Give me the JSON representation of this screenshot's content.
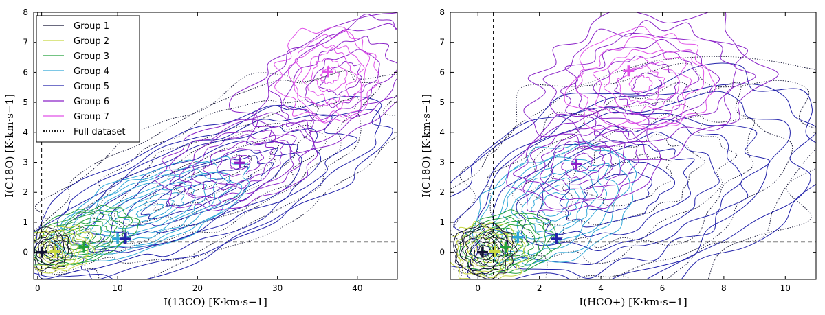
{
  "chart_data": [
    {
      "type": "contour",
      "xlabel": "I(13CO) [K·km·s−1]",
      "ylabel": "I(C18O) [K·km·s−1]",
      "xlim": [
        -0.5,
        45
      ],
      "ylim": [
        -0.9,
        8
      ],
      "xticks": [
        "0",
        "10",
        "20",
        "30",
        "40"
      ],
      "yticks": [
        "0",
        "1",
        "2",
        "3",
        "4",
        "5",
        "6",
        "7",
        "8"
      ],
      "threshold_x": 0.5,
      "threshold_y": 0.35,
      "legend_position": "top-left",
      "legend": [
        "Group 1",
        "Group 2",
        "Group 3",
        "Group 4",
        "Group 5",
        "Group 6",
        "Group 7",
        "Full dataset"
      ],
      "series": [
        {
          "name": "Group 1",
          "color": "#111133",
          "centroid": [
            0.5,
            0.0
          ]
        },
        {
          "name": "Group 2",
          "color": "#c8d840",
          "centroid": [
            2.2,
            0.02
          ]
        },
        {
          "name": "Group 3",
          "color": "#22a03a",
          "centroid": [
            5.8,
            0.18
          ]
        },
        {
          "name": "Group 4",
          "color": "#30a8d8",
          "centroid": [
            10.0,
            0.45
          ]
        },
        {
          "name": "Group 5",
          "color": "#2222aa",
          "centroid": [
            11.0,
            0.45
          ]
        },
        {
          "name": "Group 6",
          "color": "#8a22c8",
          "centroid": [
            25.3,
            2.98
          ]
        },
        {
          "name": "Group 7",
          "color": "#e050e8",
          "centroid": [
            36.3,
            6.02
          ]
        },
        {
          "name": "Full dataset",
          "color": "#000000",
          "centroid": null
        }
      ]
    },
    {
      "type": "contour",
      "xlabel": "I(HCO+) [K·km·s−1]",
      "ylabel": "I(C18O) [K·km·s−1]",
      "xlim": [
        -0.9,
        11
      ],
      "ylim": [
        -0.9,
        8
      ],
      "xticks": [
        "0",
        "2",
        "4",
        "6",
        "8",
        "10"
      ],
      "yticks": [
        "0",
        "1",
        "2",
        "3",
        "4",
        "5",
        "6",
        "7",
        "8"
      ],
      "threshold_x": 0.5,
      "threshold_y": 0.35,
      "series": [
        {
          "name": "Group 1",
          "color": "#111133",
          "centroid": [
            0.15,
            0.0
          ]
        },
        {
          "name": "Group 2",
          "color": "#c8d840",
          "centroid": [
            0.55,
            0.02
          ]
        },
        {
          "name": "Group 3",
          "color": "#22a03a",
          "centroid": [
            0.9,
            0.18
          ]
        },
        {
          "name": "Group 4",
          "color": "#30a8d8",
          "centroid": [
            1.3,
            0.5
          ]
        },
        {
          "name": "Group 5",
          "color": "#2222aa",
          "centroid": [
            2.55,
            0.45
          ]
        },
        {
          "name": "Group 6",
          "color": "#8a22c8",
          "centroid": [
            3.2,
            2.95
          ]
        },
        {
          "name": "Group 7",
          "color": "#e050e8",
          "centroid": [
            4.9,
            6.05
          ]
        }
      ]
    }
  ]
}
